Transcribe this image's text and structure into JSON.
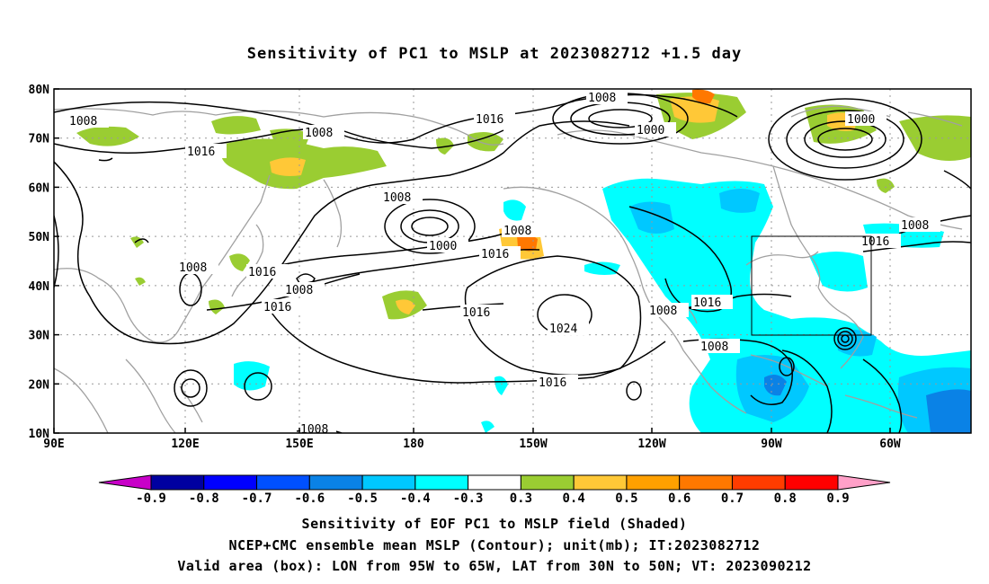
{
  "title": "Sensitivity of PC1 to MSLP at 2023082712 +1.5 day",
  "lat_labels": [
    "80N",
    "70N",
    "60N",
    "50N",
    "40N",
    "30N",
    "20N",
    "10N"
  ],
  "lon_labels": [
    "90E",
    "120E",
    "150E",
    "180",
    "150W",
    "120W",
    "90W",
    "60W"
  ],
  "contour_labels": [
    "1008",
    "1008",
    "1016",
    "1016",
    "1008",
    "1000",
    "1008",
    "1000",
    "1008",
    "1000",
    "1008",
    "1016",
    "1008",
    "1016",
    "1008",
    "1016",
    "1016",
    "1024",
    "1008",
    "1016",
    "1008",
    "1016",
    "1008",
    "1016",
    "1008"
  ],
  "colorbar": {
    "labels": [
      "-0.9",
      "-0.8",
      "-0.7",
      "-0.6",
      "-0.5",
      "-0.4",
      "-0.3",
      "0.3",
      "0.4",
      "0.5",
      "0.6",
      "0.7",
      "0.8",
      "0.9"
    ],
    "colors": [
      "#c800c8",
      "#0000a0",
      "#0000ff",
      "#0050ff",
      "#0a82e6",
      "#00c8ff",
      "#00ffff",
      "#ffffff",
      "#9acd32",
      "#ffc837",
      "#ffa000",
      "#ff7800",
      "#ff3c00",
      "#ff0000",
      "#ffa0c8"
    ]
  },
  "valid_box": {
    "lon_from": "95W",
    "lon_to": "65W",
    "lat_from": "30N",
    "lat_to": "50N"
  },
  "captions": [
    "Sensitivity of EOF PC1 to MSLP field (Shaded)",
    "NCEP+CMC ensemble mean MSLP (Contour); unit(mb); IT:2023082712",
    "Valid area (box): LON from 95W to 65W, LAT from 30N to 50N; VT: 2023090212"
  ]
}
